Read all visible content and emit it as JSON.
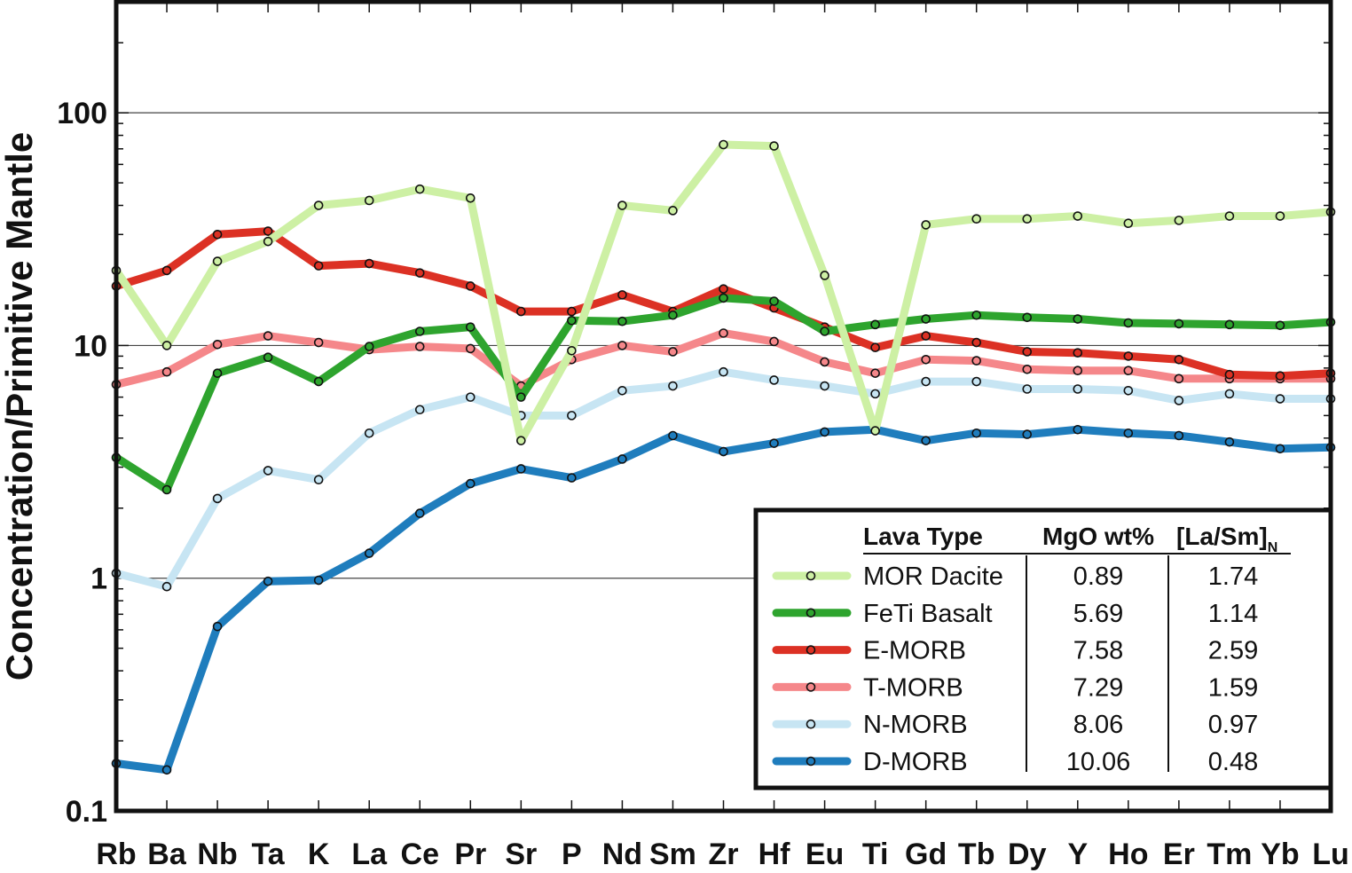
{
  "chart_data": {
    "type": "line",
    "ylabel": "Concentration/Primitive Mantle",
    "yscale": "log",
    "ylim": [
      0.1,
      300
    ],
    "y_ticks": [
      "0.1",
      "1",
      "10",
      "100"
    ],
    "categories": [
      "Rb",
      "Ba",
      "Nb",
      "Ta",
      "K",
      "La",
      "Ce",
      "Pr",
      "Sr",
      "P",
      "Nd",
      "Sm",
      "Zr",
      "Hf",
      "Eu",
      "Ti",
      "Gd",
      "Tb",
      "Dy",
      "Y",
      "Ho",
      "Er",
      "Tm",
      "Yb",
      "Lu"
    ],
    "grid": "horizontal at decades",
    "legend_position": "bottom-right",
    "legend": {
      "headers": {
        "type": "Lava Type",
        "mgo": "MgO wt%",
        "lasm": "[La/Sm]",
        "lasm_sub": "N"
      }
    },
    "series": [
      {
        "name": "MOR Dacite",
        "color": "#cdf0a4",
        "width": 9,
        "mgo": "0.89",
        "lasm": "1.74",
        "values": [
          21,
          10,
          23,
          28,
          40,
          42,
          47,
          43,
          3.9,
          9.5,
          40,
          38,
          73,
          72,
          20,
          4.3,
          33,
          35,
          35,
          36,
          33.5,
          34.5,
          36,
          36,
          37.5
        ]
      },
      {
        "name": "FeTi Basalt",
        "color": "#2ea42e",
        "width": 9,
        "mgo": "5.69",
        "lasm": "1.14",
        "values": [
          3.3,
          2.4,
          7.6,
          8.9,
          7.0,
          9.9,
          11.5,
          12,
          6.0,
          12.8,
          12.7,
          13.5,
          16,
          15.5,
          11.5,
          12.3,
          13.0,
          13.5,
          13.2,
          13.0,
          12.5,
          12.4,
          12.3,
          12.2,
          12.6
        ]
      },
      {
        "name": "E-MORB",
        "color": "#dc3124",
        "width": 9,
        "mgo": "7.58",
        "lasm": "2.59",
        "values": [
          18,
          21,
          30,
          31,
          22,
          22.5,
          20.5,
          18,
          14,
          14,
          16.5,
          14,
          17.5,
          14.5,
          12,
          9.8,
          11,
          10.3,
          9.4,
          9.3,
          9.0,
          8.7,
          7.5,
          7.4,
          7.6
        ]
      },
      {
        "name": "T-MORB",
        "color": "#f5878a",
        "width": 9,
        "mgo": "7.29",
        "lasm": "1.59",
        "values": [
          6.8,
          7.7,
          10.1,
          11,
          10.3,
          9.6,
          9.9,
          9.7,
          6.7,
          8.7,
          10.0,
          9.4,
          11.3,
          10.4,
          8.5,
          7.6,
          8.7,
          8.6,
          7.9,
          7.8,
          7.8,
          7.2,
          7.2,
          7.2,
          7.2
        ]
      },
      {
        "name": "N-MORB",
        "color": "#c7e5f3",
        "width": 9,
        "mgo": "8.06",
        "lasm": "0.97",
        "values": [
          1.05,
          0.92,
          2.2,
          2.9,
          2.65,
          4.2,
          5.3,
          6.0,
          5.0,
          5.0,
          6.4,
          6.7,
          7.7,
          7.1,
          6.7,
          6.2,
          7.0,
          7.0,
          6.5,
          6.5,
          6.4,
          5.8,
          6.2,
          5.9,
          5.9
        ]
      },
      {
        "name": "D-MORB",
        "color": "#1f7dbd",
        "width": 9,
        "mgo": "10.06",
        "lasm": "0.48",
        "values": [
          0.16,
          0.15,
          0.62,
          0.97,
          0.98,
          1.28,
          1.9,
          2.55,
          2.95,
          2.7,
          3.25,
          4.1,
          3.5,
          3.8,
          4.25,
          4.35,
          3.9,
          4.2,
          4.15,
          4.35,
          4.2,
          4.1,
          3.85,
          3.6,
          3.65
        ]
      }
    ]
  }
}
